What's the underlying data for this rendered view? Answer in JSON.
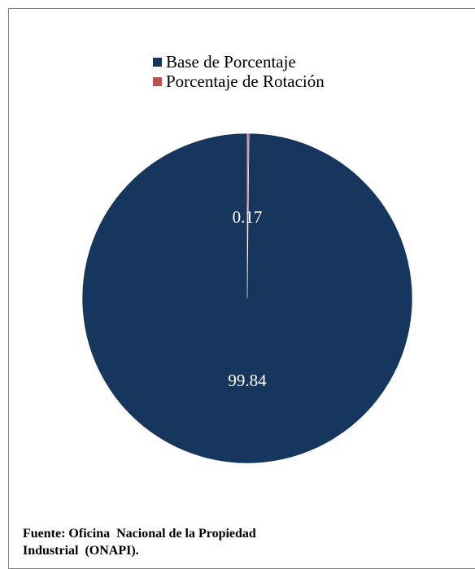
{
  "chart_data": {
    "type": "pie",
    "title": "",
    "categories": [
      "Base de Porcentaje",
      "Porcentaje de Rotación"
    ],
    "values": [
      99.84,
      0.17
    ],
    "labels": [
      "99.84",
      "0.17"
    ],
    "colors": [
      "#17365d",
      "#c0504d"
    ],
    "legend_position": "top",
    "start_angle_deg": 0
  },
  "legend": {
    "items": [
      {
        "label": "Base de Porcentaje",
        "color": "#17365d"
      },
      {
        "label": "Porcentaje de Rotación",
        "color": "#c0504d"
      }
    ]
  },
  "source": {
    "line1": "Fuente: Oficina  Nacional de la Propiedad",
    "line2": "Industrial  (ONAPI)."
  }
}
